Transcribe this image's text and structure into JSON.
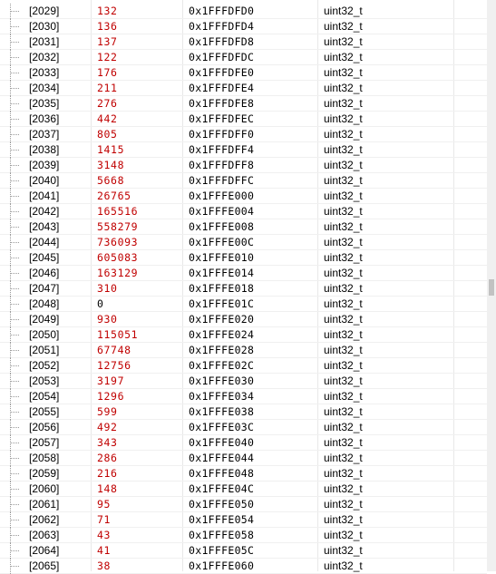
{
  "watch": {
    "value_color": "#c00000",
    "rows": [
      {
        "index": "[2029]",
        "value": 132,
        "address": "0x1FFFDFD0",
        "type": "uint32_t",
        "changed": true
      },
      {
        "index": "[2030]",
        "value": 136,
        "address": "0x1FFFDFD4",
        "type": "uint32_t",
        "changed": true
      },
      {
        "index": "[2031]",
        "value": 137,
        "address": "0x1FFFDFD8",
        "type": "uint32_t",
        "changed": true
      },
      {
        "index": "[2032]",
        "value": 122,
        "address": "0x1FFFDFDC",
        "type": "uint32_t",
        "changed": true
      },
      {
        "index": "[2033]",
        "value": 176,
        "address": "0x1FFFDFE0",
        "type": "uint32_t",
        "changed": true
      },
      {
        "index": "[2034]",
        "value": 211,
        "address": "0x1FFFDFE4",
        "type": "uint32_t",
        "changed": true
      },
      {
        "index": "[2035]",
        "value": 276,
        "address": "0x1FFFDFE8",
        "type": "uint32_t",
        "changed": true
      },
      {
        "index": "[2036]",
        "value": 442,
        "address": "0x1FFFDFEC",
        "type": "uint32_t",
        "changed": true
      },
      {
        "index": "[2037]",
        "value": 805,
        "address": "0x1FFFDFF0",
        "type": "uint32_t",
        "changed": true
      },
      {
        "index": "[2038]",
        "value": 1415,
        "address": "0x1FFFDFF4",
        "type": "uint32_t",
        "changed": true
      },
      {
        "index": "[2039]",
        "value": 3148,
        "address": "0x1FFFDFF8",
        "type": "uint32_t",
        "changed": true
      },
      {
        "index": "[2040]",
        "value": 5668,
        "address": "0x1FFFDFFC",
        "type": "uint32_t",
        "changed": true
      },
      {
        "index": "[2041]",
        "value": 26765,
        "address": "0x1FFFE000",
        "type": "uint32_t",
        "changed": true
      },
      {
        "index": "[2042]",
        "value": 165516,
        "address": "0x1FFFE004",
        "type": "uint32_t",
        "changed": true
      },
      {
        "index": "[2043]",
        "value": 558279,
        "address": "0x1FFFE008",
        "type": "uint32_t",
        "changed": true
      },
      {
        "index": "[2044]",
        "value": 736093,
        "address": "0x1FFFE00C",
        "type": "uint32_t",
        "changed": true
      },
      {
        "index": "[2045]",
        "value": 605083,
        "address": "0x1FFFE010",
        "type": "uint32_t",
        "changed": true
      },
      {
        "index": "[2046]",
        "value": 163129,
        "address": "0x1FFFE014",
        "type": "uint32_t",
        "changed": true
      },
      {
        "index": "[2047]",
        "value": 310,
        "address": "0x1FFFE018",
        "type": "uint32_t",
        "changed": true
      },
      {
        "index": "[2048]",
        "value": 0,
        "address": "0x1FFFE01C",
        "type": "uint32_t",
        "changed": false
      },
      {
        "index": "[2049]",
        "value": 930,
        "address": "0x1FFFE020",
        "type": "uint32_t",
        "changed": true
      },
      {
        "index": "[2050]",
        "value": 115051,
        "address": "0x1FFFE024",
        "type": "uint32_t",
        "changed": true
      },
      {
        "index": "[2051]",
        "value": 67748,
        "address": "0x1FFFE028",
        "type": "uint32_t",
        "changed": true
      },
      {
        "index": "[2052]",
        "value": 12756,
        "address": "0x1FFFE02C",
        "type": "uint32_t",
        "changed": true
      },
      {
        "index": "[2053]",
        "value": 3197,
        "address": "0x1FFFE030",
        "type": "uint32_t",
        "changed": true
      },
      {
        "index": "[2054]",
        "value": 1296,
        "address": "0x1FFFE034",
        "type": "uint32_t",
        "changed": true
      },
      {
        "index": "[2055]",
        "value": 599,
        "address": "0x1FFFE038",
        "type": "uint32_t",
        "changed": true
      },
      {
        "index": "[2056]",
        "value": 492,
        "address": "0x1FFFE03C",
        "type": "uint32_t",
        "changed": true
      },
      {
        "index": "[2057]",
        "value": 343,
        "address": "0x1FFFE040",
        "type": "uint32_t",
        "changed": true
      },
      {
        "index": "[2058]",
        "value": 286,
        "address": "0x1FFFE044",
        "type": "uint32_t",
        "changed": true
      },
      {
        "index": "[2059]",
        "value": 216,
        "address": "0x1FFFE048",
        "type": "uint32_t",
        "changed": true
      },
      {
        "index": "[2060]",
        "value": 148,
        "address": "0x1FFFE04C",
        "type": "uint32_t",
        "changed": true
      },
      {
        "index": "[2061]",
        "value": 95,
        "address": "0x1FFFE050",
        "type": "uint32_t",
        "changed": true
      },
      {
        "index": "[2062]",
        "value": 71,
        "address": "0x1FFFE054",
        "type": "uint32_t",
        "changed": true
      },
      {
        "index": "[2063]",
        "value": 43,
        "address": "0x1FFFE058",
        "type": "uint32_t",
        "changed": true
      },
      {
        "index": "[2064]",
        "value": 41,
        "address": "0x1FFFE05C",
        "type": "uint32_t",
        "changed": true
      },
      {
        "index": "[2065]",
        "value": 38,
        "address": "0x1FFFE060",
        "type": "uint32_t",
        "changed": true
      }
    ]
  }
}
